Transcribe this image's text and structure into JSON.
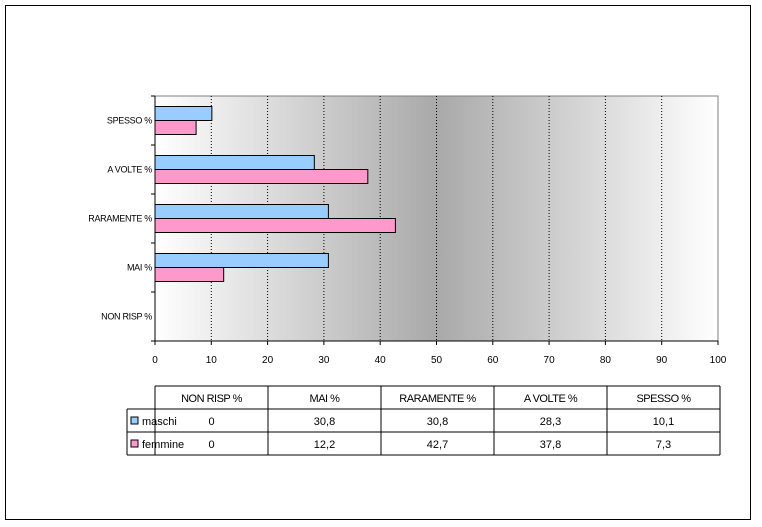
{
  "chart_data": {
    "type": "bar",
    "orientation": "horizontal",
    "categories": [
      "NON RISP %",
      "MAI %",
      "RARAMENTE %",
      "A VOLTE %",
      "SPESSO %"
    ],
    "series": [
      {
        "name": "maschi",
        "values": [
          0,
          30.8,
          30.8,
          28.3,
          10.1
        ],
        "display": [
          "0",
          "30,8",
          "30,8",
          "28,3",
          "10,1"
        ],
        "color": "#99ccff"
      },
      {
        "name": "femmine",
        "values": [
          0,
          12.2,
          42.7,
          37.8,
          7.3
        ],
        "display": [
          "0",
          "12,2",
          "42,7",
          "37,8",
          "7,3"
        ],
        "color": "#ff99cc"
      }
    ],
    "xlim": [
      0,
      100
    ],
    "xticks": [
      0,
      10,
      20,
      30,
      40,
      50,
      60,
      70,
      80,
      90,
      100
    ],
    "grid": true,
    "legend": "data-table",
    "plot_background": "gray-gradient"
  }
}
